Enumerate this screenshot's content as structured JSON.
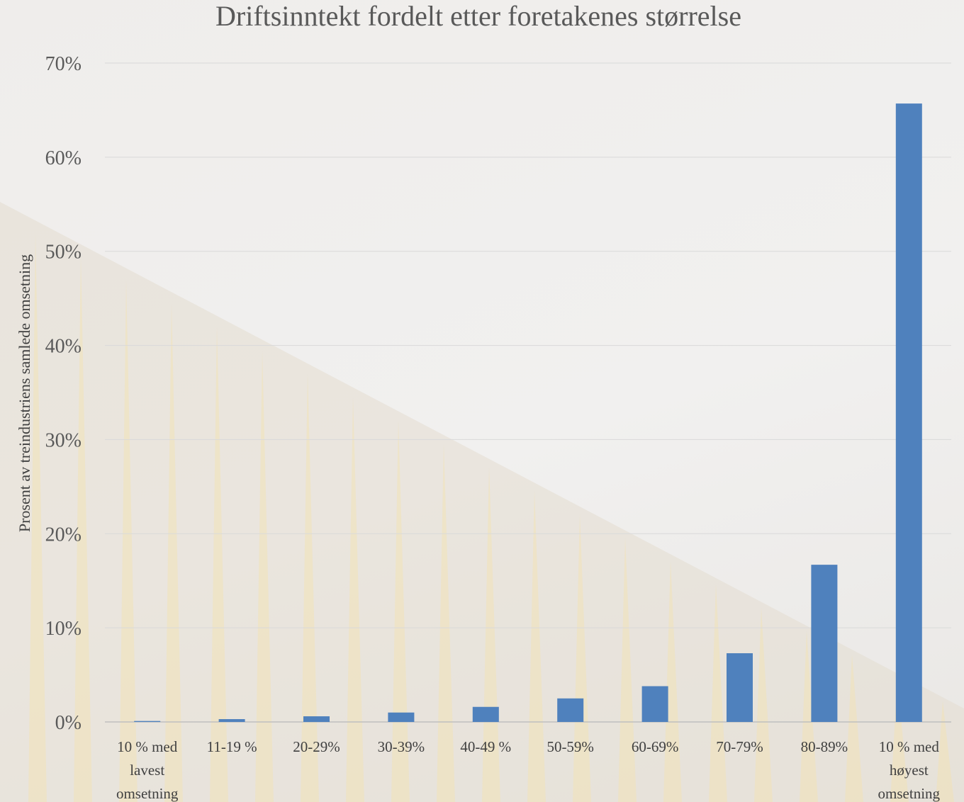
{
  "chart_data": {
    "type": "bar",
    "title": "Driftsinntekt fordelt etter foretakenes størrelse",
    "xlabel": "",
    "ylabel": "Prosent av treindustriens samlede omsetning",
    "ylim": [
      0,
      70
    ],
    "yticks": [
      "0%",
      "10%",
      "20%",
      "30%",
      "40%",
      "50%",
      "60%",
      "70%"
    ],
    "grid": true,
    "categories": [
      [
        "10 % med",
        "lavest",
        "omsetning"
      ],
      [
        "11-19 %"
      ],
      [
        "20-29%"
      ],
      [
        "30-39%"
      ],
      [
        "40-49 %"
      ],
      [
        "50-59%"
      ],
      [
        "60-69%"
      ],
      [
        "70-79%"
      ],
      [
        "80-89%"
      ],
      [
        "10 %  med",
        "høyest",
        "omsetning"
      ]
    ],
    "values": [
      0.1,
      0.3,
      0.6,
      1.0,
      1.6,
      2.5,
      3.8,
      7.3,
      16.7,
      65.7
    ],
    "colors": {
      "bar": "#4f81bd",
      "grid": "#d9d9d9",
      "axis": "#bfbfbf"
    }
  }
}
